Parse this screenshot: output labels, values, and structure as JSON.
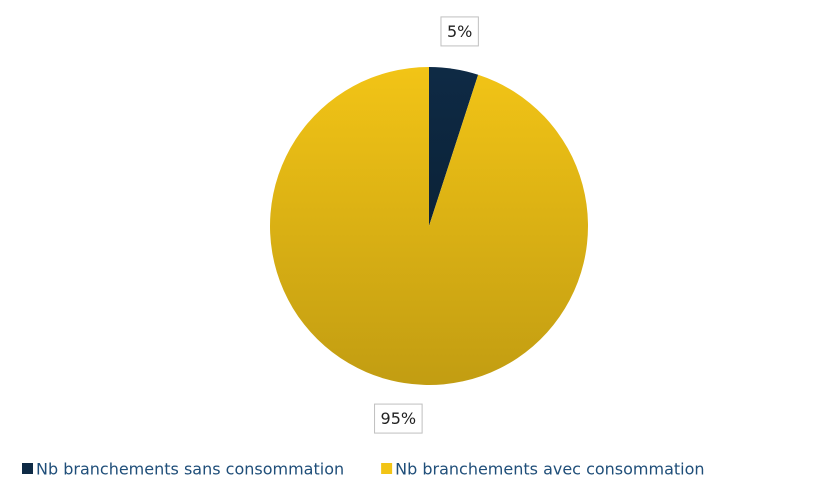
{
  "chart_data": {
    "type": "pie",
    "categories": [
      "Nb branchements sans consommation",
      "Nb branchements avec consommation"
    ],
    "values": [
      5,
      95
    ],
    "value_labels": [
      "5%",
      "95%"
    ],
    "colors": [
      "#0e2a45",
      "#f2c416"
    ],
    "legend": "bottom"
  }
}
